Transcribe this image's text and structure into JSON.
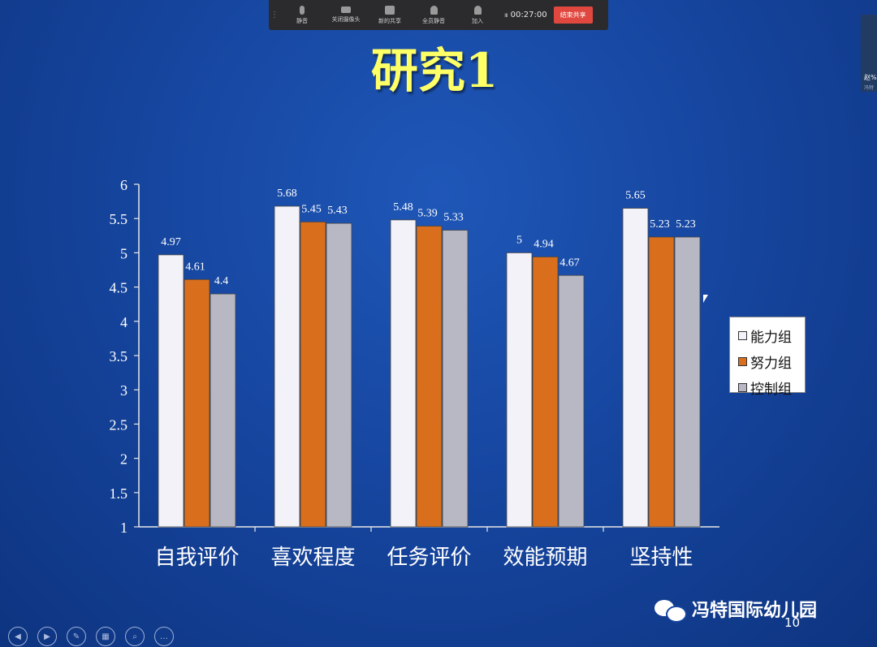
{
  "meeting": {
    "buttons": [
      {
        "label": "静音",
        "icon": "microphone-icon"
      },
      {
        "label": "关闭摄像头",
        "icon": "camera-icon"
      },
      {
        "label": "新的共享",
        "icon": "share-screen-icon"
      },
      {
        "label": "全员静音",
        "icon": "mute-all-icon"
      },
      {
        "label": "加入",
        "icon": "add-person-icon"
      }
    ],
    "timer": "00:27:00",
    "stop_label": "结束共享"
  },
  "participant": {
    "name": "赵%",
    "sub": "冯特"
  },
  "slide": {
    "title": "研究1",
    "page_number": "10",
    "watermark": "冯特国际幼儿园"
  },
  "chart_data": {
    "type": "bar",
    "categories": [
      "自我评价",
      "喜欢程度",
      "任务评价",
      "效能预期",
      "坚持性"
    ],
    "series": [
      {
        "name": "能力组",
        "color": "#f2f2f8",
        "values": [
          4.97,
          5.68,
          5.48,
          5,
          5.65
        ],
        "labels": [
          "4.97",
          "5.68",
          "5.48",
          "5",
          "5.65"
        ]
      },
      {
        "name": "努力组",
        "color": "#d96f1c",
        "values": [
          4.61,
          5.45,
          5.39,
          4.94,
          5.23
        ],
        "labels": [
          "4.61",
          "5.45",
          "5.39",
          "4.94",
          "5.23"
        ]
      },
      {
        "name": "控制组",
        "color": "#b8b8c4",
        "values": [
          4.4,
          5.43,
          5.33,
          4.67,
          5.23
        ],
        "labels": [
          "4.4",
          "5.43",
          "5.33",
          "4.67",
          "5.23"
        ]
      }
    ],
    "ylim": [
      1,
      6
    ],
    "yticks": [
      "1",
      "1.5",
      "2",
      "2.5",
      "3",
      "3.5",
      "4",
      "4.5",
      "5",
      "5.5",
      "6"
    ],
    "legend_position": "right",
    "grid": false
  },
  "nav": [
    {
      "name": "prev-slide-button",
      "glyph": "◀"
    },
    {
      "name": "next-slide-button",
      "glyph": "▶"
    },
    {
      "name": "pen-tool-button",
      "glyph": "✎"
    },
    {
      "name": "slide-overview-button",
      "glyph": "▦"
    },
    {
      "name": "zoom-button",
      "glyph": "⌕"
    },
    {
      "name": "more-options-button",
      "glyph": "…"
    }
  ]
}
